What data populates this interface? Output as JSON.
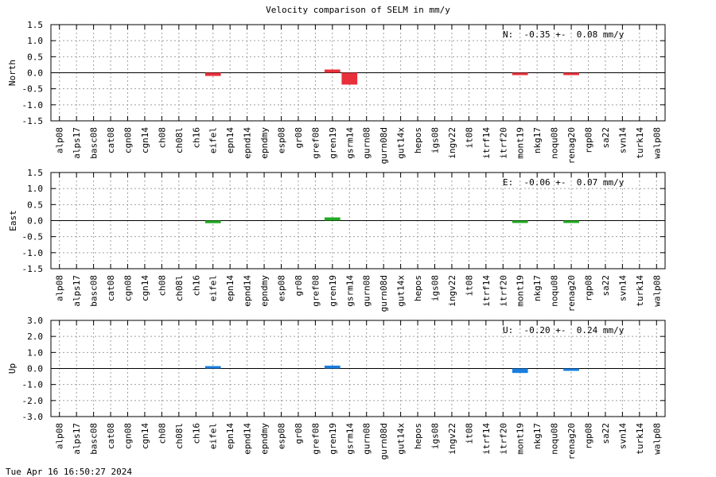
{
  "title": "Velocity comparison of SELM in mm/y",
  "timestamp": "Tue Apr 16 16:50:27 2024",
  "chart_data": [
    {
      "type": "bar",
      "ylabel": "North",
      "ylim": [
        -1.5,
        1.5
      ],
      "yticks": [
        "-1.5",
        "-1.0",
        "-0.5",
        "0.0",
        "0.5",
        "1.0",
        "1.5"
      ],
      "stat": "N:  -0.35 +-  0.08 mm/y",
      "color": "#e8303a",
      "grid": true,
      "categories": [
        "alp08",
        "alps17",
        "basc08",
        "cat08",
        "cgn08",
        "cgn14",
        "ch08",
        "ch08l",
        "ch16",
        "eifel",
        "epn14",
        "epnd14",
        "epndmy",
        "esp08",
        "gr08",
        "gref08",
        "gren19",
        "gsrm14",
        "gurn08",
        "gurn08d",
        "gut14x",
        "hepos",
        "igs08",
        "ingv22",
        "it08",
        "itrf14",
        "itrf20",
        "mont19",
        "nkg17",
        "noqu08",
        "renag20",
        "rgp08",
        "sa22",
        "svn14",
        "turk14",
        "walp08"
      ],
      "values": [
        0,
        0,
        0,
        0,
        0,
        0,
        0,
        0,
        0,
        -0.1,
        0,
        0,
        0,
        0,
        0,
        0,
        0.1,
        -0.37,
        0,
        0,
        0,
        0,
        0,
        0,
        0,
        0,
        0,
        -0.03,
        0,
        0,
        -0.05,
        0,
        0,
        0,
        0,
        0
      ]
    },
    {
      "type": "bar",
      "ylabel": "East",
      "ylim": [
        -1.5,
        1.5
      ],
      "yticks": [
        "-1.5",
        "-1.0",
        "-0.5",
        "0.0",
        "0.5",
        "1.0",
        "1.5"
      ],
      "stat": "E:  -0.06 +-  0.07 mm/y",
      "color": "#22aa22",
      "grid": true,
      "categories": [
        "alp08",
        "alps17",
        "basc08",
        "cat08",
        "cgn08",
        "cgn14",
        "ch08",
        "ch08l",
        "ch16",
        "eifel",
        "epn14",
        "epnd14",
        "epndmy",
        "esp08",
        "gr08",
        "gref08",
        "gren19",
        "gsrm14",
        "gurn08",
        "gurn08d",
        "gut14x",
        "hepos",
        "igs08",
        "ingv22",
        "it08",
        "itrf14",
        "itrf20",
        "mont19",
        "nkg17",
        "noqu08",
        "renag20",
        "rgp08",
        "sa22",
        "svn14",
        "turk14",
        "walp08"
      ],
      "values": [
        0,
        0,
        0,
        0,
        0,
        0,
        0,
        0,
        0,
        -0.08,
        0,
        0,
        0,
        0,
        0,
        0,
        0.1,
        0,
        0,
        0,
        0,
        0,
        0,
        0,
        0,
        0,
        0,
        -0.05,
        0,
        0,
        -0.07,
        0,
        0,
        0,
        0,
        0
      ]
    },
    {
      "type": "bar",
      "ylabel": "Up",
      "ylim": [
        -3.0,
        3.0
      ],
      "yticks": [
        "-3.0",
        "-2.0",
        "-1.0",
        "0.0",
        "1.0",
        "2.0",
        "3.0"
      ],
      "stat": "U:  -0.20 +-  0.24 mm/y",
      "color": "#1a7fe0",
      "grid": true,
      "categories": [
        "alp08",
        "alps17",
        "basc08",
        "cat08",
        "cgn08",
        "cgn14",
        "ch08",
        "ch08l",
        "ch16",
        "eifel",
        "epn14",
        "epnd14",
        "epndmy",
        "esp08",
        "gr08",
        "gref08",
        "gren19",
        "gsrm14",
        "gurn08",
        "gurn08d",
        "gut14x",
        "hepos",
        "igs08",
        "ingv22",
        "it08",
        "itrf14",
        "itrf20",
        "mont19",
        "nkg17",
        "noqu08",
        "renag20",
        "rgp08",
        "sa22",
        "svn14",
        "turk14",
        "walp08"
      ],
      "values": [
        0,
        0,
        0,
        0,
        0,
        0,
        0,
        0,
        0,
        0.1,
        0,
        0,
        0,
        0,
        0,
        0,
        0.18,
        0,
        0,
        0,
        0,
        0,
        0,
        0,
        0,
        0,
        0,
        -0.28,
        0,
        0,
        -0.1,
        0,
        0,
        0,
        0,
        0
      ]
    }
  ]
}
